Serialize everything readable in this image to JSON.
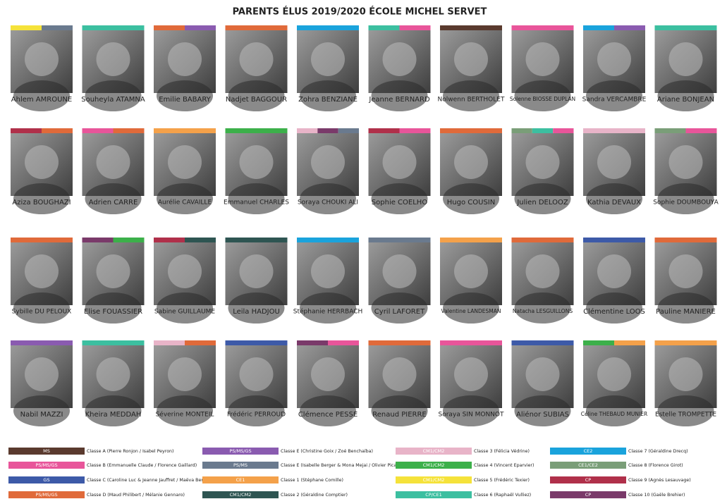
{
  "title": "PARENTS ÉLUS 2019/2020 ÉCOLE MICHEL SERVET",
  "people": [
    [
      {
        "name": "Ahlem AMROUNE",
        "bar_colors": [
          "#f5e23a",
          "#6a7a8e"
        ]
      },
      {
        "name": "Souheyla ATAMNA",
        "bar_colors": [
          "#3cbfa0"
        ]
      },
      {
        "name": "Emilie BABARY",
        "bar_colors": [
          "#e06a3a",
          "#8a5bb0"
        ]
      },
      {
        "name": "Nadjet BAGGOUR",
        "bar_colors": [
          "#e06a3a"
        ]
      },
      {
        "name": "Zohra BENZIANE",
        "bar_colors": [
          "#1aa3dc"
        ]
      },
      {
        "name": "Jeanne BERNARD",
        "bar_colors": [
          "#3cbfa0",
          "#e8559a"
        ]
      },
      {
        "name": "Nolwenn BERTHOLET",
        "bar_colors": [
          "#5a3a2e"
        ]
      },
      {
        "name": "Solenne BIOSSE DUPLAN",
        "bar_colors": [
          "#e8559a"
        ]
      },
      {
        "name": "Sandra  VERCAMBRE",
        "bar_colors": [
          "#1aa3dc",
          "#8a5bb0"
        ]
      },
      {
        "name": "Ariane BONJEAN",
        "bar_colors": [
          "#3cbfa0"
        ]
      }
    ],
    [
      {
        "name": "Aziza BOUGHAZI",
        "bar_colors": [
          "#b0304a",
          "#e06a3a"
        ]
      },
      {
        "name": "Adrien CARRE",
        "bar_colors": [
          "#e8559a",
          "#e06a3a"
        ]
      },
      {
        "name": "Aurélie CAVAILLE",
        "bar_colors": [
          "#f4a14a"
        ]
      },
      {
        "name": "Emmanuel CHARLES",
        "bar_colors": [
          "#3cb04a"
        ]
      },
      {
        "name": "Soraya CHOUKI ALI",
        "bar_colors": [
          "#e8b4c8",
          "#7a3a6a",
          "#6a7a8e"
        ]
      },
      {
        "name": "Sophie COELHO",
        "bar_colors": [
          "#b0304a",
          "#e8559a"
        ]
      },
      {
        "name": "Hugo COUSIN",
        "bar_colors": [
          "#e06a3a"
        ]
      },
      {
        "name": "Julien DELOOZ",
        "bar_colors": [
          "#7a9e78",
          "#3cbfa0",
          "#e8559a"
        ]
      },
      {
        "name": "Kathia DEVAUX",
        "bar_colors": [
          "#e8b4c8"
        ]
      },
      {
        "name": "Sophie DOUMBOUYA",
        "bar_colors": [
          "#7a9e78",
          "#e8559a"
        ]
      }
    ],
    [
      {
        "name": "Sybille DU PELOUX",
        "bar_colors": [
          "#e06a3a"
        ]
      },
      {
        "name": "Elise FOUASSIER",
        "bar_colors": [
          "#7a3a6a",
          "#3cb04a"
        ]
      },
      {
        "name": "Sabine GUILLAUME",
        "bar_colors": [
          "#b0304a",
          "#2e5552"
        ]
      },
      {
        "name": "Leila HADJOU",
        "bar_colors": [
          "#2e5552"
        ]
      },
      {
        "name": "Stéphanie HERRBACH",
        "bar_colors": [
          "#1aa3dc"
        ]
      },
      {
        "name": "Cyril LAFORET",
        "bar_colors": [
          "#6a7a8e"
        ]
      },
      {
        "name": "Valentine LANDESMAN",
        "bar_colors": [
          "#f4a14a"
        ]
      },
      {
        "name": "Natacha LESGUILLONS",
        "bar_colors": [
          "#e06a3a"
        ]
      },
      {
        "name": "Clémentine LOOS",
        "bar_colors": [
          "#3d5aa8"
        ]
      },
      {
        "name": "Pauline MANIERE",
        "bar_colors": [
          "#e06a3a"
        ]
      }
    ],
    [
      {
        "name": "Nabil MAZZI",
        "bar_colors": [
          "#8a5bb0"
        ]
      },
      {
        "name": "Kheira MEDDAH",
        "bar_colors": [
          "#3cbfa0"
        ]
      },
      {
        "name": "Séverine MONTEIL",
        "bar_colors": [
          "#e8b4c8",
          "#e06a3a"
        ]
      },
      {
        "name": "Frédéric PERROUD",
        "bar_colors": [
          "#3d5aa8"
        ]
      },
      {
        "name": "Clémence PESSE",
        "bar_colors": [
          "#7a3a6a",
          "#e8559a"
        ]
      },
      {
        "name": "Renaud PIERRE",
        "bar_colors": [
          "#e06a3a"
        ]
      },
      {
        "name": "Soraya SIN MONNOT",
        "bar_colors": [
          "#e8559a"
        ]
      },
      {
        "name": "Aliénor SUBIAS",
        "bar_colors": [
          "#3d5aa8"
        ]
      },
      {
        "name": "Céline THEBAUD MUNIER",
        "bar_colors": [
          "#3cb04a",
          "#f4a14a"
        ]
      },
      {
        "name": "Estelle TROMPETTE",
        "bar_colors": [
          "#f4a14a"
        ]
      }
    ]
  ],
  "legend": [
    [
      {
        "level": "MS",
        "text": "Classe A (Pierre Ronjon / Isabel Peyron)",
        "color": "#5a3a2e"
      },
      {
        "level": "PS/MS/GS",
        "text": "Classe B (Emmanuelle Claude / Florence Gaillard)",
        "color": "#e8559a"
      },
      {
        "level": "GS",
        "text": "Classe C (Caroline Luc & Jeanne Jauffret / Maëva Bernard)",
        "color": "#3d5aa8"
      },
      {
        "level": "PS/MS/GS",
        "text": "Classe D (Maud Philibert / Mélanie Gennaro)",
        "color": "#e06a3a"
      }
    ],
    [
      {
        "level": "PS/MS/GS",
        "text": "Classe E (Christine Goix / Zoé Benchaïba)",
        "color": "#8a5bb0"
      },
      {
        "level": "PS/MS",
        "text": "Classe E (Isabelle Berger & Mona Mejai / Olivier Picard)",
        "color": "#6a7a8e"
      },
      {
        "level": "CE1",
        "text": "Classe 1  (Stéphane Comille)",
        "color": "#f4a14a"
      },
      {
        "level": "CM1/CM2",
        "text": "Classe 2  (Géraldine Comptier)",
        "color": "#2e5552"
      }
    ],
    [
      {
        "level": "CM1/CM2",
        "text": "Classe 3 (Félicia Védrine)",
        "color": "#e8b4c8"
      },
      {
        "level": "CM1/CM2",
        "text": "Classe 4 (Vincent Eparvier)",
        "color": "#3cb04a"
      },
      {
        "level": "CM1/CM2",
        "text": "Classe 5 (Frédéric Texier)",
        "color": "#f5e23a"
      },
      {
        "level": "CP/CE1",
        "text": "Classe 6 (Raphaël Vulliez)",
        "color": "#3cbfa0"
      }
    ],
    [
      {
        "level": "CE2",
        "text": "Classe 7 (Géraldine Drecq)",
        "color": "#1aa3dc"
      },
      {
        "level": "CE1/CE2",
        "text": "Classe 8 (Florence Girot)",
        "color": "#7a9e78"
      },
      {
        "level": "CP",
        "text": "Classe 9 (Agnès Lesauvage)",
        "color": "#b0304a"
      },
      {
        "level": "CP",
        "text": "Classe 10 (Gaële Brehier)",
        "color": "#7a3a6a"
      }
    ]
  ]
}
